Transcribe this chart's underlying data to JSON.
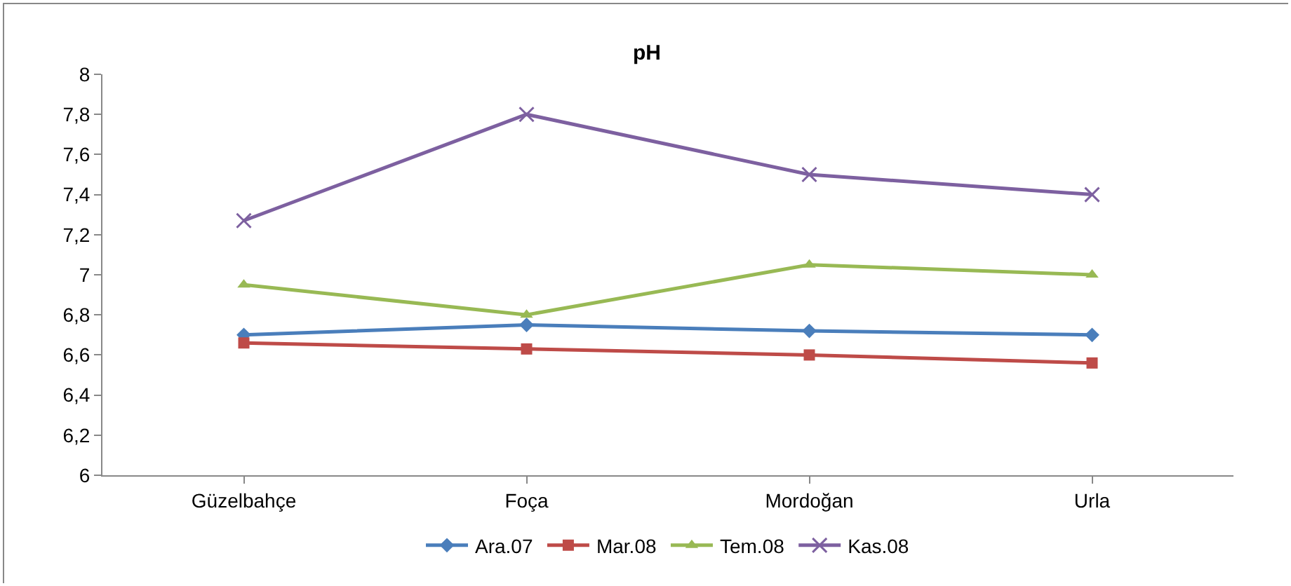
{
  "chart_data": {
    "type": "line",
    "title": "pH",
    "categories": [
      "Güzelbahçe",
      "Foça",
      "Mordoğan",
      "Urla"
    ],
    "series": [
      {
        "name": "Ara.07",
        "color": "#4a7ebb",
        "marker": "diamond",
        "values": [
          6.7,
          6.75,
          6.72,
          6.7
        ]
      },
      {
        "name": "Mar.08",
        "color": "#be4b48",
        "marker": "square",
        "values": [
          6.66,
          6.63,
          6.6,
          6.56
        ]
      },
      {
        "name": "Tem.08",
        "color": "#98b954",
        "marker": "triangle",
        "values": [
          6.95,
          6.8,
          7.05,
          7.0
        ]
      },
      {
        "name": "Kas.08",
        "color": "#7d60a0",
        "marker": "cross",
        "values": [
          7.27,
          7.8,
          7.5,
          7.4
        ]
      }
    ],
    "ylim": [
      6,
      8
    ],
    "yticks": [
      6,
      {
        "value": 6.2,
        "label": "6,2"
      },
      {
        "value": 6.4,
        "label": "6,4"
      },
      {
        "value": 6.6,
        "label": "6,6"
      },
      {
        "value": 6.8,
        "label": "6,8"
      },
      7,
      {
        "value": 7.2,
        "label": "7,2"
      },
      {
        "value": 7.4,
        "label": "7,4"
      },
      {
        "value": 7.6,
        "label": "7,6"
      },
      {
        "value": 7.8,
        "label": "7,8"
      },
      8
    ],
    "grid": false,
    "legend": "bottom"
  }
}
